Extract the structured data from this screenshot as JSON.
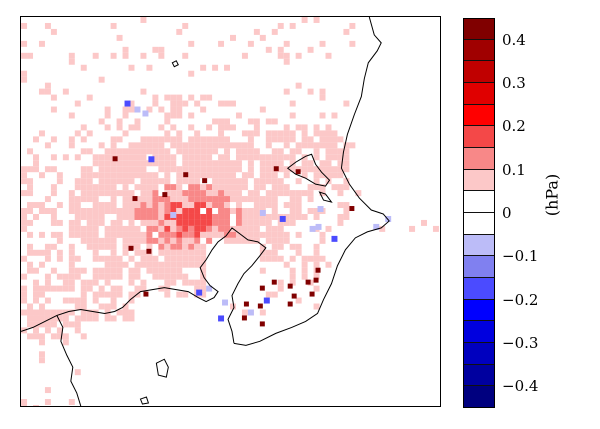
{
  "map": {
    "region": "Kanto Plain",
    "units_label": "(hPa)",
    "coastline_color": "#000000",
    "background_color": "#ffffff"
  },
  "colorbar": {
    "min": -0.45,
    "max": 0.45,
    "step": 0.05,
    "colors": [
      "#00007f",
      "#00009f",
      "#0000bf",
      "#0000df",
      "#0000ff",
      "#4b4bff",
      "#8080f0",
      "#bcbcf8",
      "#ffffff",
      "#ffffff",
      "#fcc8c8",
      "#f88888",
      "#f44848",
      "#ff0000",
      "#e00000",
      "#c00000",
      "#a00000",
      "#800000"
    ],
    "ticks": [
      {
        "value": 0.4,
        "label": "0.4"
      },
      {
        "value": 0.3,
        "label": "0.3"
      },
      {
        "value": 0.2,
        "label": "0.2"
      },
      {
        "value": 0.1,
        "label": "0.1"
      },
      {
        "value": 0,
        "label": "0"
      },
      {
        "value": -0.1,
        "label": "−0.1"
      },
      {
        "value": -0.2,
        "label": "−0.2"
      },
      {
        "value": -0.3,
        "label": "−0.3"
      },
      {
        "value": -0.4,
        "label": "−0.4"
      }
    ]
  }
}
